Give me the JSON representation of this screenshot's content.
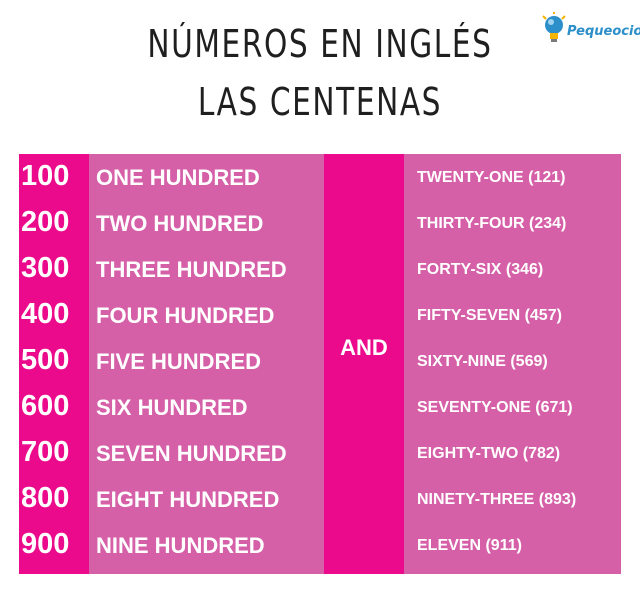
{
  "header": {
    "title": "NÚMEROS EN INGLÉS",
    "subtitle": "LAS CENTENAS",
    "logo_text": "Pequeocio"
  },
  "table": {
    "connector": "AND",
    "rows": [
      {
        "num": "100",
        "word": "ONE HUNDRED",
        "tail": "TWENTY-ONE (121)"
      },
      {
        "num": "200",
        "word": "TWO HUNDRED",
        "tail": "THIRTY-FOUR (234)"
      },
      {
        "num": "300",
        "word": "THREE HUNDRED",
        "tail": "FORTY-SIX (346)"
      },
      {
        "num": "400",
        "word": "FOUR HUNDRED",
        "tail": "FIFTY-SEVEN (457)"
      },
      {
        "num": "500",
        "word": "FIVE HUNDRED",
        "tail": "SIXTY-NINE (569)"
      },
      {
        "num": "600",
        "word": "SIX HUNDRED",
        "tail": "SEVENTY-ONE (671)"
      },
      {
        "num": "700",
        "word": "SEVEN HUNDRED",
        "tail": "EIGHTY-TWO (782)"
      },
      {
        "num": "800",
        "word": "EIGHT HUNDRED",
        "tail": "NINETY-THREE (893)"
      },
      {
        "num": "900",
        "word": "NINE HUNDRED",
        "tail": "ELEVEN (911)"
      }
    ]
  },
  "colors": {
    "hot_pink": "#ec0a8c",
    "light_pink": "#d660a8",
    "logo_blue": "#2c8fc9"
  }
}
